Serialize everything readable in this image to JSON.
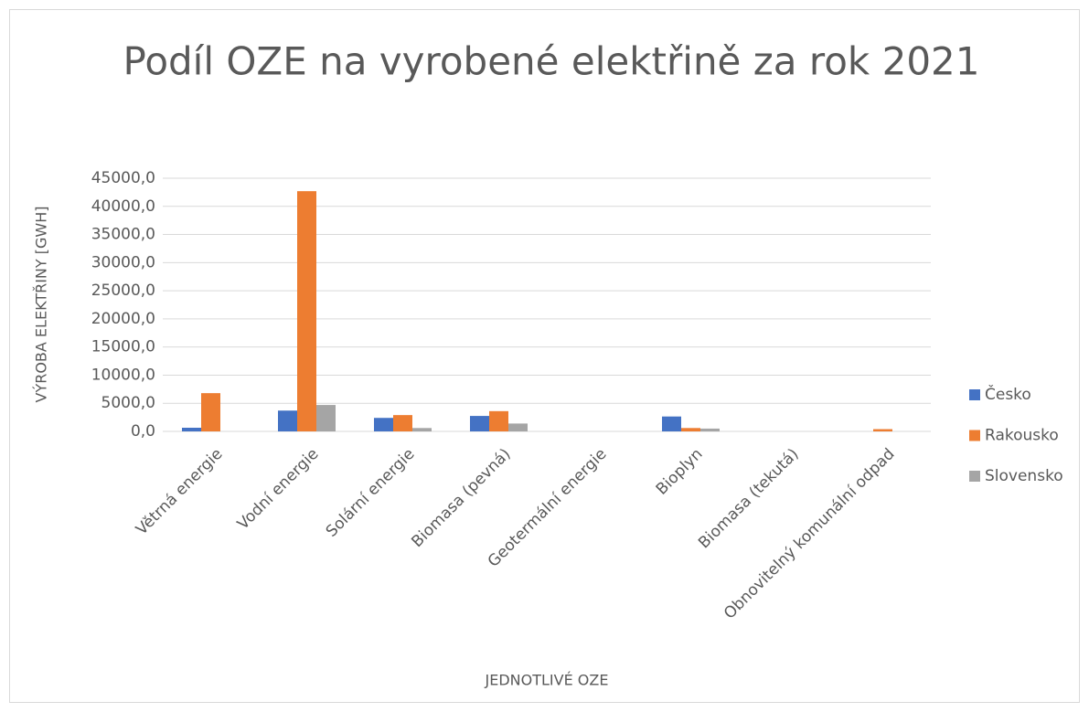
{
  "chart_data": {
    "type": "bar",
    "title": "Podíl OZE na vyrobené elektřině za rok 2021",
    "x_label": "JEDNOTLIVÉ OZE",
    "y_label": "VÝROBA ELEKTŘINY [GWH]",
    "categories": [
      "Větrná energie",
      "Vodní energie",
      "Solární  energie",
      "Biomasa (pevná)",
      "Geotermální energie",
      "Bioplyn",
      "Biomasa (tekutá)",
      "Obnovitelný komunální odpad"
    ],
    "series": [
      {
        "name": "Česko",
        "color": "#4472c4",
        "values": [
          650,
          3700,
          2400,
          2750,
          0,
          2650,
          0,
          0
        ]
      },
      {
        "name": "Rakousko",
        "color": "#ed7d31",
        "values": [
          6800,
          42700,
          2900,
          3600,
          0,
          600,
          0,
          400
        ]
      },
      {
        "name": "Slovensko",
        "color": "#a5a5a5",
        "values": [
          0,
          4700,
          600,
          1400,
          0,
          500,
          0,
          0
        ]
      }
    ],
    "ylim": [
      0,
      45000
    ],
    "yticks": [
      {
        "value": 0,
        "label": "0,0"
      },
      {
        "value": 5000,
        "label": "5000,0"
      },
      {
        "value": 10000,
        "label": "10000,0"
      },
      {
        "value": 15000,
        "label": "15000,0"
      },
      {
        "value": 20000,
        "label": "20000,0"
      },
      {
        "value": 25000,
        "label": "25000,0"
      },
      {
        "value": 30000,
        "label": "30000,0"
      },
      {
        "value": 35000,
        "label": "35000,0"
      },
      {
        "value": 40000,
        "label": "40000,0"
      },
      {
        "value": 45000,
        "label": "45000,0"
      }
    ],
    "grid": true,
    "legend": "right"
  }
}
